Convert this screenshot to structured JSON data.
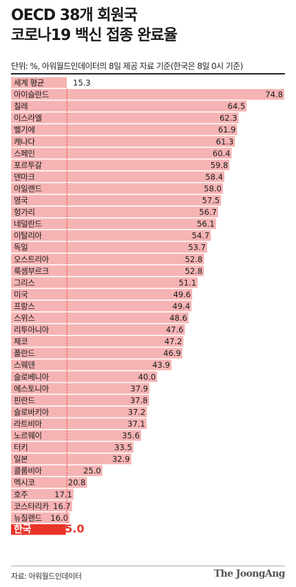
{
  "title_lines": [
    "OECD 38개 회원국",
    "코로나19 백신 접종 완료율"
  ],
  "unit_note": "단위: %, 아워월드인데이터의 8일 제공 자료 기준(한국은 8일 0시 기준)",
  "source": "자료: 아워월드인데이터",
  "logo": "The JoongAng",
  "colors": {
    "bar": "#f6b3b3",
    "highlight": "#e8352a",
    "highlight_value": "#e8352a",
    "average_line": "#e8352a",
    "text": "#1a1a1a"
  },
  "chart_data": {
    "type": "bar",
    "orientation": "horizontal",
    "title": "OECD 38개 회원국 코로나19 백신 접종 완료율",
    "xlabel": "",
    "ylabel": "",
    "unit": "%",
    "xlim": [
      0,
      75
    ],
    "grid": false,
    "legend": "none",
    "highlight_category": "한국",
    "reference_line": {
      "label": "세계 평균",
      "value": 15.3
    },
    "categories": [
      "세계 평균",
      "아이슬란드",
      "칠레",
      "이스라엘",
      "벨기에",
      "캐나다",
      "스페인",
      "포르투갈",
      "덴마크",
      "아일랜드",
      "영국",
      "헝가리",
      "네덜란드",
      "이탈리아",
      "독일",
      "오스트리아",
      "룩셈부르크",
      "그리스",
      "미국",
      "프랑스",
      "스위스",
      "리투아니아",
      "체코",
      "폴란드",
      "스웨덴",
      "슬로베니아",
      "에스토니아",
      "핀란드",
      "슬로바키아",
      "라트비아",
      "노르웨이",
      "터키",
      "일본",
      "콜롬비아",
      "멕시코",
      "호주",
      "코스타리카",
      "뉴질랜드",
      "한국"
    ],
    "values": [
      15.3,
      74.8,
      64.5,
      62.3,
      61.9,
      61.3,
      60.4,
      59.8,
      58.4,
      58.0,
      57.5,
      56.7,
      56.1,
      54.7,
      53.7,
      52.8,
      52.8,
      51.1,
      49.6,
      49.4,
      48.6,
      47.6,
      47.2,
      46.9,
      43.9,
      40.0,
      37.9,
      37.8,
      37.2,
      37.1,
      35.6,
      33.5,
      32.9,
      25.0,
      20.8,
      17.1,
      16.7,
      16.0,
      15.0
    ],
    "value_labels": [
      "15.3",
      "74.8",
      "64.5",
      "62.3",
      "61.9",
      "61.3",
      "60.4",
      "59.8",
      "58.4",
      "58.0",
      "57.5",
      "56.7",
      "56.1",
      "54.7",
      "53.7",
      "52.8",
      "52.8",
      "51.1",
      "49.6",
      "49.4",
      "48.6",
      "47.6",
      "47.2",
      "46.9",
      "43.9",
      "40.0",
      "37.9",
      "37.8",
      "37.2",
      "37.1",
      "35.6",
      "33.5",
      "32.9",
      "25.0",
      "20.8",
      "17.1",
      "16.7",
      "16.0",
      "15.0"
    ]
  }
}
